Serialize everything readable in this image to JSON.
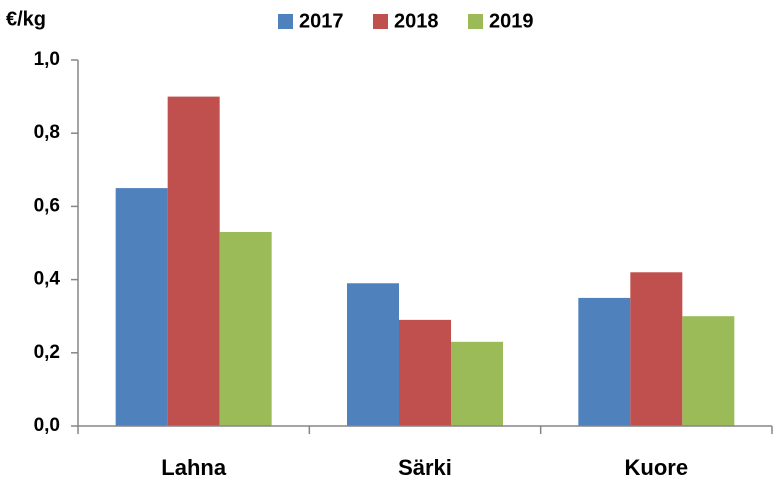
{
  "chart_data": {
    "type": "bar",
    "ylabel": "€/kg",
    "categories": [
      "Lahna",
      "Särki",
      "Kuore"
    ],
    "series": [
      {
        "name": "2017",
        "color": "#4f81bd",
        "values": [
          0.65,
          0.39,
          0.35
        ]
      },
      {
        "name": "2018",
        "color": "#c0504d",
        "values": [
          0.9,
          0.29,
          0.42
        ]
      },
      {
        "name": "2019",
        "color": "#9bbb59",
        "values": [
          0.53,
          0.23,
          0.3
        ]
      }
    ],
    "ylim": [
      0,
      1.0
    ],
    "yticks": [
      {
        "value": 0,
        "label": "0,0"
      },
      {
        "value": 0.2,
        "label": "0,2"
      },
      {
        "value": 0.4,
        "label": "0,4"
      },
      {
        "value": 0.6,
        "label": "0,6"
      },
      {
        "value": 0.8,
        "label": "0,8"
      },
      {
        "value": 1.0,
        "label": "1,0"
      }
    ],
    "grid": false,
    "legend": "top"
  }
}
